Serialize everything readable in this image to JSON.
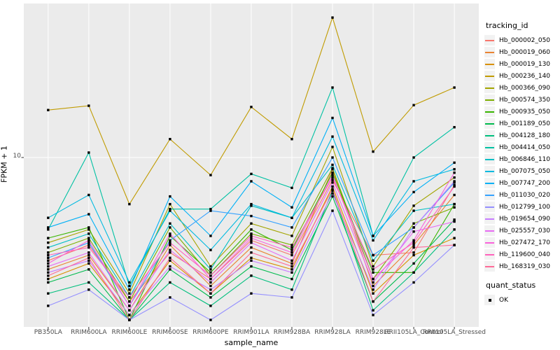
{
  "chart": {
    "y_axis": {
      "title": "FPKM + 1",
      "tick_label": "10"
    },
    "x_axis": {
      "title": "sample_name"
    },
    "legend": {
      "tracking_title": "tracking_id",
      "quant_title": "quant_status",
      "quant_items": [
        {
          "label": "OK",
          "marker": "black-square"
        }
      ]
    },
    "colors": {
      "panel_bg": "#EBEBEB",
      "grid": "#FFFFFF",
      "tick_mark": "#333333",
      "tick_text": "#4d4d4d",
      "point": "#000000",
      "legend_key_bg": "#F2F2F2"
    }
  },
  "chart_data": {
    "type": "line",
    "title": "",
    "xlabel": "sample_name",
    "ylabel": "FPKM + 1",
    "y_scale": "log10",
    "y_ticks": [
      10
    ],
    "ylim_approx": [
      1.9,
      45
    ],
    "grid": "major-only",
    "legend_position": "right",
    "point_marker": "black-square",
    "quant_status": "OK",
    "categories": [
      "PB350LA",
      "RRIM600LA",
      "RRIM600LE",
      "RRIM600SE",
      "RRIM600PE",
      "RRIM901LA",
      "RRIM928BA",
      "RRIM928LA",
      "RRIM928LE",
      "RRII105LA_Control",
      "RRII105LA_Stressed"
    ],
    "series": [
      {
        "name": "Hb_000002_050",
        "color": "#F8766D",
        "values": [
          3.6,
          4.2,
          2.4,
          3.9,
          3.0,
          4.4,
          3.8,
          8.0,
          3.8,
          3.9,
          7.6
        ]
      },
      {
        "name": "Hb_000019_060",
        "color": "#EA8331",
        "values": [
          3.3,
          3.8,
          2.2,
          4.2,
          2.8,
          4.1,
          3.5,
          8.9,
          2.8,
          4.2,
          6.9
        ]
      },
      {
        "name": "Hb_000019_130",
        "color": "#D89000",
        "values": [
          3.0,
          3.5,
          2.1,
          3.6,
          2.6,
          3.7,
          3.3,
          7.5,
          2.6,
          3.8,
          4.5
        ]
      },
      {
        "name": "Hb_000236_140",
        "color": "#C09B00",
        "values": [
          16.0,
          16.7,
          6.3,
          12.0,
          8.4,
          16.5,
          12.0,
          40.0,
          10.6,
          16.8,
          20.0
        ]
      },
      {
        "name": "Hb_000366_090",
        "color": "#A3A500",
        "values": [
          4.3,
          4.9,
          2.6,
          6.3,
          3.4,
          5.2,
          4.6,
          11.1,
          3.4,
          6.2,
          8.2
        ]
      },
      {
        "name": "Hb_000574_350",
        "color": "#7CAE00",
        "values": [
          3.9,
          4.5,
          2.4,
          5.0,
          3.1,
          4.7,
          4.2,
          9.0,
          3.0,
          5.2,
          6.1
        ]
      },
      {
        "name": "Hb_000935_050",
        "color": "#39B600",
        "values": [
          4.5,
          5.0,
          2.0,
          4.6,
          3.2,
          4.9,
          4.0,
          8.6,
          3.2,
          3.2,
          6.3
        ]
      },
      {
        "name": "Hb_001189_050",
        "color": "#00BB4E",
        "values": [
          2.9,
          3.3,
          2.0,
          3.3,
          2.5,
          3.4,
          3.0,
          6.8,
          2.4,
          3.5,
          5.4
        ]
      },
      {
        "name": "Hb_004128_180",
        "color": "#00BF7D",
        "values": [
          2.6,
          2.9,
          2.0,
          2.9,
          2.3,
          3.1,
          2.7,
          7.2,
          2.2,
          3.2,
          4.9
        ]
      },
      {
        "name": "Hb_004414_050",
        "color": "#00C1A3",
        "values": [
          4.9,
          10.5,
          2.8,
          6.0,
          6.0,
          8.5,
          7.4,
          20.0,
          4.6,
          10.0,
          13.5
        ]
      },
      {
        "name": "Hb_006846_110",
        "color": "#00BFC4",
        "values": [
          4.1,
          4.7,
          2.5,
          5.2,
          3.3,
          6.2,
          5.5,
          9.3,
          3.6,
          5.9,
          6.3
        ]
      },
      {
        "name": "Hb_007075_050",
        "color": "#00BAE0",
        "values": [
          5.5,
          6.9,
          2.9,
          5.9,
          4.0,
          6.3,
          5.5,
          12.3,
          4.4,
          7.9,
          8.9
        ]
      },
      {
        "name": "Hb_007747_200",
        "color": "#00B0F6",
        "values": [
          5.0,
          5.7,
          2.7,
          6.8,
          4.6,
          7.9,
          6.1,
          14.8,
          4.6,
          7.1,
          9.5
        ]
      },
      {
        "name": "Hb_011030_020",
        "color": "#35A2FF",
        "values": [
          3.7,
          4.3,
          2.3,
          4.4,
          5.9,
          5.6,
          5.0,
          10.0,
          3.8,
          5.0,
          7.8
        ]
      },
      {
        "name": "Hb_012799_100",
        "color": "#9590FF",
        "values": [
          2.3,
          2.7,
          2.0,
          2.5,
          2.0,
          2.6,
          2.5,
          5.9,
          2.1,
          2.9,
          4.2
        ]
      },
      {
        "name": "Hb_019654_090",
        "color": "#C77CFF",
        "values": [
          3.2,
          3.6,
          2.1,
          3.4,
          2.7,
          3.6,
          3.2,
          7.0,
          2.7,
          5.0,
          7.9
        ]
      },
      {
        "name": "Hb_025557_030",
        "color": "#E76BF3",
        "values": [
          3.4,
          3.9,
          2.2,
          4.0,
          2.9,
          4.3,
          3.6,
          7.8,
          2.9,
          4.8,
          5.3
        ]
      },
      {
        "name": "Hb_027472_170",
        "color": "#FA62DB",
        "values": [
          3.5,
          4.4,
          2.3,
          4.7,
          3.0,
          4.5,
          3.9,
          8.4,
          3.0,
          4.4,
          8.6
        ]
      },
      {
        "name": "Hb_119600_040",
        "color": "#FF62BC",
        "values": [
          3.8,
          4.1,
          2.5,
          4.3,
          3.1,
          4.6,
          4.1,
          8.2,
          3.3,
          4.3,
          7.5
        ]
      },
      {
        "name": "Hb_168319_030",
        "color": "#FF6A98",
        "values": [
          3.1,
          3.7,
          2.0,
          3.7,
          2.6,
          3.9,
          3.4,
          7.3,
          2.4,
          4.1,
          4.2
        ]
      }
    ]
  }
}
